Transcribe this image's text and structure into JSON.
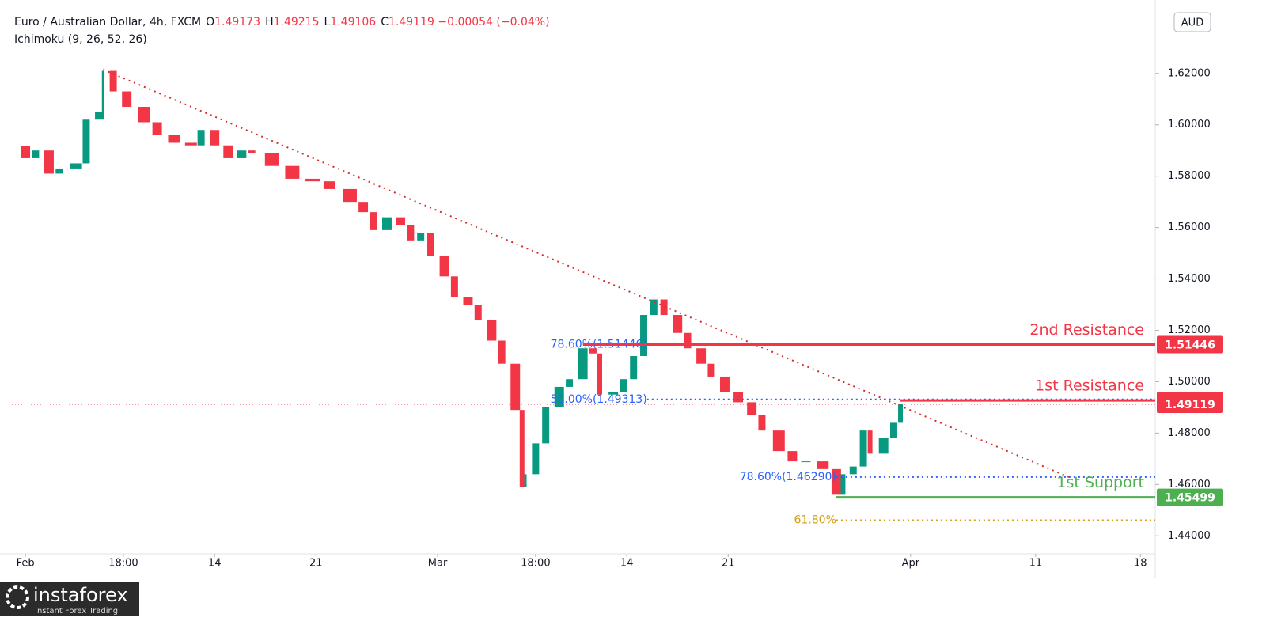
{
  "header": {
    "symbol": "Euro / Australian Dollar, 4h, FXCM",
    "ohlc": [
      {
        "k": "O",
        "v": "1.49173"
      },
      {
        "k": "H",
        "v": "1.49215"
      },
      {
        "k": "L",
        "v": "1.49106"
      },
      {
        "k": "C",
        "v": "1.49119"
      }
    ],
    "change": "−0.00054 (−0.04%)",
    "indicator": "Ichimoku (9, 26, 52, 26)",
    "currency": "AUD"
  },
  "logo": {
    "name": "instaforex",
    "tagline": "Instant Forex Trading"
  },
  "chart_data": {
    "type": "candlestick",
    "x": [
      0,
      4,
      7,
      11,
      14,
      19,
      22,
      26,
      27,
      30,
      34,
      39,
      43,
      48,
      53,
      56,
      60,
      64,
      68,
      71,
      77,
      83,
      89,
      94,
      100,
      104,
      107,
      111,
      115,
      118,
      121,
      124,
      128,
      131,
      135,
      138,
      142,
      145,
      149,
      151,
      152,
      155,
      158,
      162,
      165,
      169,
      172,
      174,
      178,
      181,
      184,
      187,
      190,
      193,
      197,
      200,
      204,
      207,
      211,
      215,
      219,
      222,
      227,
      231,
      235,
      240,
      244,
      246,
      249,
      252,
      254,
      258,
      261,
      263
    ],
    "values": [
      1.5917,
      1.587,
      1.59,
      1.581,
      1.583,
      1.585,
      1.602,
      1.605,
      1.621,
      1.613,
      1.607,
      1.601,
      1.596,
      1.593,
      1.592,
      1.598,
      1.592,
      1.587,
      1.59,
      1.589,
      1.584,
      1.579,
      1.578,
      1.575,
      1.57,
      1.566,
      1.559,
      1.564,
      1.561,
      1.555,
      1.558,
      1.549,
      1.541,
      1.533,
      1.53,
      1.524,
      1.516,
      1.507,
      1.489,
      1.459,
      1.464,
      1.476,
      1.49,
      1.498,
      1.501,
      1.513,
      1.511,
      1.495,
      1.496,
      1.501,
      1.51,
      1.526,
      1.532,
      1.526,
      1.519,
      1.513,
      1.507,
      1.502,
      1.496,
      1.492,
      1.487,
      1.481,
      1.473,
      1.469,
      1.469,
      1.466,
      1.456,
      1.464,
      1.467,
      1.481,
      1.472,
      1.478,
      1.484,
      1.4912
    ],
    "up_color": "#089981",
    "down_color": "#f23645",
    "xlim": [
      0,
      338.4
    ],
    "xticks": [
      {
        "value": 4,
        "label": "Feb"
      },
      {
        "value": 33,
        "label": "18:00"
      },
      {
        "value": 60,
        "label": "14"
      },
      {
        "value": 90,
        "label": "21"
      },
      {
        "value": 126,
        "label": "Mar"
      },
      {
        "value": 155,
        "label": "18:00"
      },
      {
        "value": 182,
        "label": "14"
      },
      {
        "value": 212,
        "label": "21"
      },
      {
        "value": 266,
        "label": "Apr"
      },
      {
        "value": 303,
        "label": "11"
      },
      {
        "value": 334,
        "label": "18"
      }
    ],
    "ylim": [
      1.433,
      1.6455
    ],
    "yticks": [
      {
        "value": 1.44,
        "label": "1.44000"
      },
      {
        "value": 1.46,
        "label": "1.46000"
      },
      {
        "value": 1.48,
        "label": "1.48000"
      },
      {
        "value": 1.5,
        "label": "1.50000"
      },
      {
        "value": 1.52,
        "label": "1.52000"
      },
      {
        "value": 1.54,
        "label": "1.54000"
      },
      {
        "value": 1.56,
        "label": "1.56000"
      },
      {
        "value": 1.58,
        "label": "1.58000"
      },
      {
        "value": 1.6,
        "label": "1.60000"
      },
      {
        "value": 1.62,
        "label": "1.62000"
      }
    ],
    "trendline": {
      "x": [
        27,
        313
      ],
      "values": [
        1.6215,
        1.4628
      ],
      "color": "#d32f2f"
    },
    "levels": [
      {
        "name": "2nd Resistance",
        "value": 1.51446,
        "color": "#f23645",
        "x_start": 169
      },
      {
        "name": "1st Resistance",
        "value": 1.49269,
        "color": "#f23645",
        "x_start": 263
      },
      {
        "value": 1.49119,
        "color": "#f23645",
        "x_start": 0,
        "dotted": true
      },
      {
        "name": "1st Support",
        "value": 1.45499,
        "color": "#4caf50",
        "x_start": 244
      }
    ],
    "fib": [
      {
        "label": "78.60%(1.51446)",
        "value": 1.51446,
        "x_start": 188,
        "color": "#2962ff"
      },
      {
        "label": "50.00%(1.49313)",
        "value": 1.49313,
        "x_start": 188,
        "color": "#2962ff"
      },
      {
        "label": "78.60%(1.46290)",
        "value": 1.4629,
        "x_start": 244,
        "color": "#2962ff"
      },
      {
        "label": "61.80%",
        "value": 1.4461,
        "x_start": 244,
        "color": "#d4a017"
      }
    ]
  }
}
